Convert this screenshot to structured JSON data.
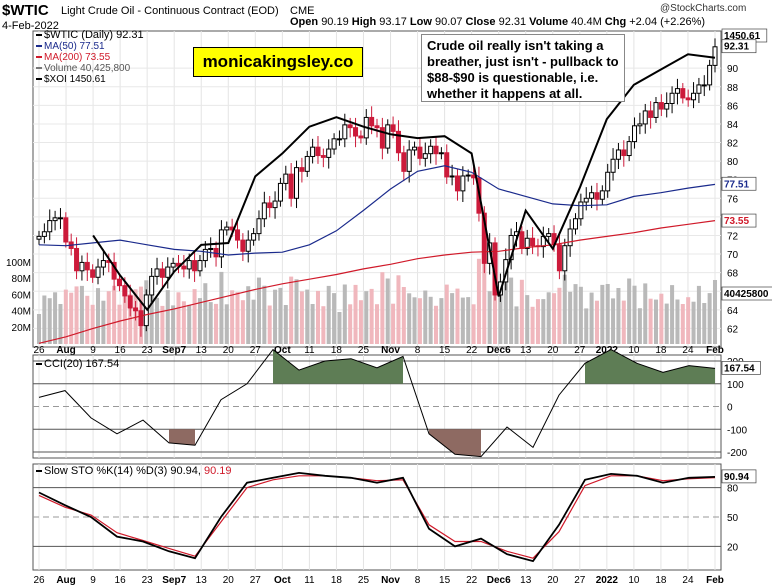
{
  "header": {
    "symbol": "$WTIC",
    "name": "Light Crude Oil - Continuous Contract (EOD)",
    "exchange": "CME",
    "date": "4-Feb-2022",
    "open_label": "Open",
    "open": "90.19",
    "high_label": "High",
    "high": "93.17",
    "low_label": "Low",
    "low": "90.07",
    "close_label": "Close",
    "close": "92.31",
    "volume_label": "Volume",
    "volume": "40.4M",
    "chg_label": "Chg",
    "chg": "+2.04 (+2.26%)",
    "credit": "@StockCharts.com"
  },
  "brand": "monicakingsley.co",
  "annotation": "Crude oil really isn't taking a breather, just isn't - pullback to $88-$90 is questionable, i.e. whether it happens at all.",
  "legend": {
    "price": "$WTIC (Daily) 92.31",
    "ma50": "MA(50) 77.51",
    "ma200": "MA(200) 73.55",
    "volume": "Volume 40,425,800",
    "xoi": "$XOI 1450.61"
  },
  "price_badges": {
    "xoi": "1450.61",
    "close": "92.31",
    "ma50": "77.51",
    "ma200": "73.55",
    "volume": "40425800"
  },
  "cci_label": "CCI(20) 167.54",
  "cci_badge": "167.54",
  "sto_label_prefix": "Slow STO %K(14) %D(3) 90.94,",
  "sto_label_d": "90.19",
  "sto_badges": {
    "k": "90.94"
  },
  "colors": {
    "up": "#000000",
    "down": "#cc1a3a",
    "ma50": "#1a2a8c",
    "ma200": "#d01a2a",
    "vol_up": "#b9b9b9",
    "vol_down": "#f0b7bd",
    "cci_fill_pos": "#5e7d55",
    "cci_fill_neg": "#8e6a62",
    "sto_k": "#000000",
    "sto_d": "#d01a2a",
    "xoi": "#000000"
  },
  "chart_data": [
    {
      "type": "candlestick",
      "title": "$WTIC (Daily)",
      "x_tick_labels": [
        "26",
        "Aug",
        "9",
        "16",
        "23",
        "Sep7",
        "13",
        "20",
        "27",
        "Oct",
        "11",
        "18",
        "25",
        "Nov",
        "8",
        "15",
        "22",
        "Dec6",
        "13",
        "20",
        "27",
        "2022",
        "10",
        "18",
        "24",
        "Feb"
      ],
      "ylim": [
        60,
        94
      ],
      "y_ticks": [
        62,
        64,
        66,
        68,
        70,
        72,
        74,
        76,
        78,
        80,
        82,
        84,
        86,
        88,
        90
      ],
      "volume_ticks": [
        "20M",
        "40M",
        "60M",
        "80M",
        "100M"
      ],
      "close": [
        71.9,
        72.4,
        73.6,
        73.9,
        73.9,
        71.3,
        70.6,
        68.2,
        69.1,
        68.3,
        67.5,
        68.6,
        69.3,
        69.1,
        67.3,
        66.6,
        65.5,
        64.2,
        63.9,
        62.3,
        65.6,
        67.6,
        68.4,
        67.5,
        68.6,
        69.0,
        68.7,
        68.4,
        69.3,
        68.2,
        69.3,
        70.5,
        70.6,
        69.7,
        72.6,
        72.9,
        72.6,
        71.5,
        70.3,
        71.5,
        72.2,
        73.8,
        75.5,
        75.0,
        75.7,
        77.6,
        78.6,
        76.0,
        79.3,
        78.9,
        80.5,
        81.5,
        80.6,
        80.4,
        81.3,
        82.4,
        82.4,
        83.9,
        83.6,
        82.7,
        82.5,
        84.7,
        83.8,
        83.6,
        81.4,
        83.9,
        83.2,
        80.9,
        78.9,
        81.2,
        81.5,
        80.3,
        80.8,
        81.6,
        80.8,
        80.9,
        78.3,
        78.4,
        76.8,
        78.4,
        78.5,
        78.2,
        74.4,
        69.0,
        71.2,
        65.6,
        67.0,
        69.4,
        72.0,
        72.4,
        70.6,
        71.7,
        70.9,
        70.8,
        71.9,
        72.2,
        71.0,
        68.2,
        70.9,
        72.7,
        73.8,
        75.6,
        76.0,
        76.6,
        75.9,
        76.8,
        78.8,
        80.2,
        81.2,
        80.6,
        82.1,
        83.8,
        84.0,
        85.4,
        84.7,
        86.3,
        85.6,
        86.2,
        87.3,
        87.8,
        86.8,
        86.6,
        87.3,
        88.2,
        88.2,
        90.3,
        92.3
      ],
      "ma50_at_ticks": [
        71.0,
        70.9,
        71.2,
        71.5,
        71.0,
        70.5,
        70.3,
        69.9,
        70.1,
        70.2,
        71.0,
        72.5,
        74.7,
        77.0,
        78.9,
        79.5,
        78.8,
        77.0,
        76.2,
        75.4,
        75.2,
        75.3,
        76.2,
        76.6,
        77.1,
        77.5
      ],
      "ma200_at_ticks": [
        60.4,
        61.1,
        62.0,
        62.8,
        63.5,
        64.1,
        64.8,
        65.5,
        66.2,
        66.8,
        67.3,
        67.8,
        68.4,
        68.9,
        69.5,
        69.9,
        70.2,
        70.3,
        70.7,
        71.0,
        71.5,
        71.9,
        72.3,
        72.8,
        73.2,
        73.6
      ],
      "xoi_at_ticks": [
        null,
        null,
        985,
        880,
        790,
        890,
        960,
        965,
        1140,
        1200,
        1270,
        1295,
        1270,
        1250,
        1240,
        1245,
        1200,
        825,
        1050,
        950,
        1110,
        1290,
        1380,
        1420,
        1460,
        1450.61
      ]
    },
    {
      "type": "line",
      "title": "CCI(20)",
      "ylim": [
        -200,
        200
      ],
      "y_ticks": [
        -200,
        -100,
        0,
        100,
        200
      ],
      "values": [
        40,
        70,
        -50,
        -120,
        -60,
        -160,
        -170,
        30,
        100,
        250,
        160,
        200,
        210,
        170,
        220,
        -120,
        -210,
        -220,
        -90,
        -180,
        50,
        190,
        250,
        190,
        150,
        180,
        167.54
      ]
    },
    {
      "type": "line",
      "title": "Slow STO %K(14) %D(3)",
      "ylim": [
        0,
        100
      ],
      "y_ticks": [
        20,
        50,
        80
      ],
      "k": [
        75,
        62,
        50,
        30,
        25,
        15,
        8,
        50,
        85,
        90,
        95,
        92,
        90,
        85,
        90,
        38,
        20,
        28,
        12,
        5,
        42,
        88,
        94,
        92,
        85,
        90,
        90.94
      ],
      "d": [
        72,
        60,
        52,
        34,
        26,
        18,
        10,
        45,
        80,
        88,
        92,
        92,
        90,
        87,
        88,
        42,
        25,
        25,
        15,
        8,
        35,
        82,
        92,
        92,
        87,
        89,
        90.19
      ]
    }
  ]
}
